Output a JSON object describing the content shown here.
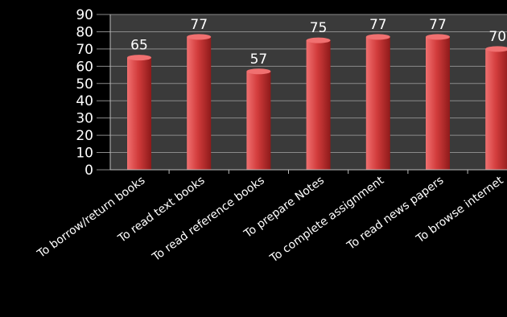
{
  "chart_data": {
    "type": "bar",
    "title": "",
    "xlabel": "",
    "ylabel": "",
    "ylim": [
      0,
      90
    ],
    "yticks": [
      0,
      10,
      20,
      30,
      40,
      50,
      60,
      70,
      80,
      90
    ],
    "grid": true,
    "legend": "none",
    "categories": [
      "To borrow/return books",
      "To read text books",
      "To read reference books",
      "To prepare Notes",
      "To complete assignment",
      "To read news papers",
      "To browse internet"
    ],
    "values": [
      65,
      77,
      57,
      75,
      77,
      77,
      70
    ],
    "data_labels": [
      "65",
      "77",
      "57",
      "75",
      "77",
      "77",
      "70"
    ],
    "colors": {
      "background": "#000000",
      "plot_area": "#3a3a3a",
      "gridline": "#8a8a8a",
      "bar_light": "#f07070",
      "bar_mid": "#d23c3c",
      "bar_dark": "#8e1a1a",
      "text": "#ffffff"
    }
  }
}
